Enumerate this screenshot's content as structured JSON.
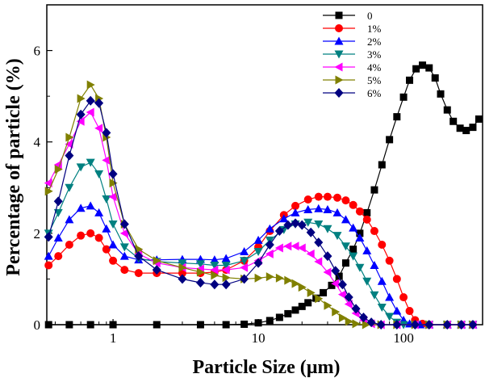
{
  "chart_data": {
    "type": "line",
    "title": "",
    "xlabel": "Particle Size (µm)",
    "ylabel": "Percentage of particle (%)",
    "xscale": "log",
    "xlim": [
      0.35,
      350
    ],
    "ylim": [
      0,
      7
    ],
    "x_ticks": [
      1,
      10,
      100
    ],
    "x_tick_labels": [
      "1",
      "10",
      "100"
    ],
    "y_ticks": [
      0,
      2,
      4,
      6
    ],
    "y_tick_labels": [
      "0",
      "2",
      "4",
      "6"
    ],
    "legend_position": "top-right",
    "series": [
      {
        "name": "0",
        "color": "#000000",
        "marker": "square",
        "points": [
          [
            0.36,
            0
          ],
          [
            0.5,
            0
          ],
          [
            0.7,
            0
          ],
          [
            1,
            0
          ],
          [
            2,
            0
          ],
          [
            4,
            0
          ],
          [
            6,
            0
          ],
          [
            8,
            0.01
          ],
          [
            10,
            0.04
          ],
          [
            12,
            0.09
          ],
          [
            14,
            0.16
          ],
          [
            16,
            0.24
          ],
          [
            18,
            0.32
          ],
          [
            20,
            0.4
          ],
          [
            22,
            0.48
          ],
          [
            25,
            0.58
          ],
          [
            28,
            0.7
          ],
          [
            32,
            0.86
          ],
          [
            36,
            1.06
          ],
          [
            40,
            1.35
          ],
          [
            45,
            1.65
          ],
          [
            50,
            2.0
          ],
          [
            56,
            2.45
          ],
          [
            63,
            2.95
          ],
          [
            71,
            3.5
          ],
          [
            80,
            4.05
          ],
          [
            90,
            4.55
          ],
          [
            100,
            4.98
          ],
          [
            110,
            5.35
          ],
          [
            122,
            5.6
          ],
          [
            135,
            5.68
          ],
          [
            150,
            5.62
          ],
          [
            165,
            5.4
          ],
          [
            180,
            5.05
          ],
          [
            200,
            4.7
          ],
          [
            220,
            4.45
          ],
          [
            245,
            4.3
          ],
          [
            270,
            4.25
          ],
          [
            300,
            4.32
          ],
          [
            330,
            4.5
          ]
        ]
      },
      {
        "name": "1%",
        "color": "#ff0000",
        "marker": "circle",
        "points": [
          [
            0.36,
            1.3
          ],
          [
            0.42,
            1.5
          ],
          [
            0.5,
            1.75
          ],
          [
            0.6,
            1.95
          ],
          [
            0.7,
            2.0
          ],
          [
            0.8,
            1.9
          ],
          [
            0.9,
            1.65
          ],
          [
            1,
            1.4
          ],
          [
            1.2,
            1.2
          ],
          [
            1.5,
            1.13
          ],
          [
            2,
            1.13
          ],
          [
            3,
            1.13
          ],
          [
            4,
            1.13
          ],
          [
            5,
            1.15
          ],
          [
            6,
            1.2
          ],
          [
            8,
            1.4
          ],
          [
            10,
            1.7
          ],
          [
            12,
            2.05
          ],
          [
            15,
            2.4
          ],
          [
            18,
            2.6
          ],
          [
            22,
            2.74
          ],
          [
            26,
            2.8
          ],
          [
            30,
            2.8
          ],
          [
            35,
            2.78
          ],
          [
            40,
            2.72
          ],
          [
            45,
            2.62
          ],
          [
            50,
            2.48
          ],
          [
            56,
            2.3
          ],
          [
            63,
            2.05
          ],
          [
            71,
            1.75
          ],
          [
            80,
            1.4
          ],
          [
            90,
            1.0
          ],
          [
            100,
            0.6
          ],
          [
            110,
            0.3
          ],
          [
            120,
            0.1
          ],
          [
            135,
            0.02
          ],
          [
            150,
            0
          ],
          [
            200,
            0
          ],
          [
            250,
            0
          ],
          [
            300,
            0
          ]
        ]
      },
      {
        "name": "2%",
        "color": "#0000ff",
        "marker": "triangle-up",
        "points": [
          [
            0.36,
            1.5
          ],
          [
            0.42,
            1.9
          ],
          [
            0.5,
            2.3
          ],
          [
            0.6,
            2.55
          ],
          [
            0.7,
            2.6
          ],
          [
            0.8,
            2.45
          ],
          [
            0.9,
            2.1
          ],
          [
            1,
            1.75
          ],
          [
            1.2,
            1.5
          ],
          [
            1.5,
            1.42
          ],
          [
            2,
            1.42
          ],
          [
            3,
            1.43
          ],
          [
            4,
            1.43
          ],
          [
            5,
            1.42
          ],
          [
            6,
            1.45
          ],
          [
            8,
            1.6
          ],
          [
            10,
            1.85
          ],
          [
            12,
            2.1
          ],
          [
            15,
            2.32
          ],
          [
            18,
            2.45
          ],
          [
            22,
            2.52
          ],
          [
            26,
            2.54
          ],
          [
            30,
            2.52
          ],
          [
            35,
            2.45
          ],
          [
            40,
            2.3
          ],
          [
            45,
            2.12
          ],
          [
            50,
            1.9
          ],
          [
            56,
            1.62
          ],
          [
            63,
            1.3
          ],
          [
            71,
            0.95
          ],
          [
            80,
            0.6
          ],
          [
            90,
            0.3
          ],
          [
            100,
            0.1
          ],
          [
            110,
            0.02
          ],
          [
            130,
            0
          ],
          [
            150,
            0
          ],
          [
            200,
            0
          ],
          [
            250,
            0
          ],
          [
            300,
            0
          ]
        ]
      },
      {
        "name": "3%",
        "color": "#008080",
        "marker": "triangle-down",
        "points": [
          [
            0.36,
            2.0
          ],
          [
            0.42,
            2.45
          ],
          [
            0.5,
            3.0
          ],
          [
            0.6,
            3.45
          ],
          [
            0.7,
            3.55
          ],
          [
            0.8,
            3.3
          ],
          [
            0.9,
            2.75
          ],
          [
            1,
            2.2
          ],
          [
            1.2,
            1.7
          ],
          [
            1.5,
            1.45
          ],
          [
            2,
            1.38
          ],
          [
            3,
            1.35
          ],
          [
            4,
            1.33
          ],
          [
            5,
            1.3
          ],
          [
            6,
            1.3
          ],
          [
            8,
            1.4
          ],
          [
            10,
            1.6
          ],
          [
            12,
            1.85
          ],
          [
            15,
            2.08
          ],
          [
            18,
            2.2
          ],
          [
            22,
            2.24
          ],
          [
            26,
            2.2
          ],
          [
            30,
            2.1
          ],
          [
            35,
            1.95
          ],
          [
            40,
            1.72
          ],
          [
            45,
            1.5
          ],
          [
            50,
            1.25
          ],
          [
            56,
            0.95
          ],
          [
            63,
            0.65
          ],
          [
            71,
            0.38
          ],
          [
            80,
            0.18
          ],
          [
            90,
            0.05
          ],
          [
            100,
            0
          ],
          [
            120,
            0
          ],
          [
            150,
            0
          ],
          [
            200,
            0
          ],
          [
            250,
            0
          ],
          [
            300,
            0
          ]
        ]
      },
      {
        "name": "4%",
        "color": "#ff00ff",
        "marker": "triangle-left",
        "points": [
          [
            0.36,
            3.1
          ],
          [
            0.42,
            3.5
          ],
          [
            0.5,
            3.95
          ],
          [
            0.6,
            4.45
          ],
          [
            0.7,
            4.65
          ],
          [
            0.8,
            4.3
          ],
          [
            0.9,
            3.6
          ],
          [
            1,
            2.8
          ],
          [
            1.2,
            2.0
          ],
          [
            1.5,
            1.55
          ],
          [
            2,
            1.35
          ],
          [
            3,
            1.25
          ],
          [
            4,
            1.22
          ],
          [
            5,
            1.2
          ],
          [
            6,
            1.2
          ],
          [
            8,
            1.25
          ],
          [
            10,
            1.4
          ],
          [
            12,
            1.55
          ],
          [
            14,
            1.68
          ],
          [
            16,
            1.72
          ],
          [
            18,
            1.72
          ],
          [
            20,
            1.68
          ],
          [
            23,
            1.55
          ],
          [
            26,
            1.38
          ],
          [
            30,
            1.15
          ],
          [
            34,
            0.9
          ],
          [
            38,
            0.66
          ],
          [
            42,
            0.45
          ],
          [
            47,
            0.25
          ],
          [
            53,
            0.1
          ],
          [
            60,
            0.02
          ],
          [
            70,
            0
          ],
          [
            90,
            0
          ],
          [
            120,
            0
          ],
          [
            150,
            0
          ],
          [
            200,
            0
          ],
          [
            250,
            0
          ],
          [
            300,
            0
          ]
        ]
      },
      {
        "name": "5%",
        "color": "#808000",
        "marker": "triangle-right",
        "points": [
          [
            0.36,
            2.92
          ],
          [
            0.42,
            3.4
          ],
          [
            0.5,
            4.1
          ],
          [
            0.6,
            4.95
          ],
          [
            0.7,
            5.25
          ],
          [
            0.8,
            4.95
          ],
          [
            0.9,
            4.1
          ],
          [
            1,
            3.1
          ],
          [
            1.2,
            2.2
          ],
          [
            1.5,
            1.65
          ],
          [
            2,
            1.4
          ],
          [
            3,
            1.25
          ],
          [
            4,
            1.15
          ],
          [
            5,
            1.08
          ],
          [
            6,
            1.03
          ],
          [
            8,
            1.0
          ],
          [
            10,
            1.02
          ],
          [
            12,
            1.05
          ],
          [
            14,
            1.02
          ],
          [
            16,
            0.97
          ],
          [
            18,
            0.9
          ],
          [
            20,
            0.82
          ],
          [
            23,
            0.7
          ],
          [
            26,
            0.57
          ],
          [
            30,
            0.42
          ],
          [
            34,
            0.28
          ],
          [
            38,
            0.15
          ],
          [
            42,
            0.07
          ],
          [
            47,
            0.02
          ],
          [
            55,
            0
          ],
          [
            70,
            0
          ],
          [
            90,
            0
          ],
          [
            120,
            0
          ],
          [
            150,
            0
          ],
          [
            200,
            0
          ],
          [
            250,
            0
          ],
          [
            300,
            0
          ]
        ]
      },
      {
        "name": "6%",
        "color": "#000080",
        "marker": "diamond",
        "points": [
          [
            0.36,
            1.92
          ],
          [
            0.42,
            2.7
          ],
          [
            0.5,
            3.7
          ],
          [
            0.6,
            4.6
          ],
          [
            0.7,
            4.9
          ],
          [
            0.8,
            4.85
          ],
          [
            0.9,
            4.2
          ],
          [
            1,
            3.3
          ],
          [
            1.2,
            2.2
          ],
          [
            1.5,
            1.5
          ],
          [
            2,
            1.2
          ],
          [
            3,
            1.0
          ],
          [
            4,
            0.92
          ],
          [
            5,
            0.88
          ],
          [
            6,
            0.88
          ],
          [
            8,
            1.0
          ],
          [
            10,
            1.35
          ],
          [
            12,
            1.75
          ],
          [
            14,
            2.05
          ],
          [
            16,
            2.18
          ],
          [
            18,
            2.22
          ],
          [
            20,
            2.18
          ],
          [
            23,
            2.02
          ],
          [
            26,
            1.8
          ],
          [
            30,
            1.5
          ],
          [
            34,
            1.18
          ],
          [
            38,
            0.88
          ],
          [
            42,
            0.6
          ],
          [
            47,
            0.35
          ],
          [
            53,
            0.16
          ],
          [
            60,
            0.05
          ],
          [
            70,
            0
          ],
          [
            90,
            0
          ],
          [
            120,
            0
          ],
          [
            150,
            0
          ],
          [
            200,
            0
          ],
          [
            250,
            0
          ],
          [
            300,
            0
          ]
        ]
      }
    ]
  }
}
